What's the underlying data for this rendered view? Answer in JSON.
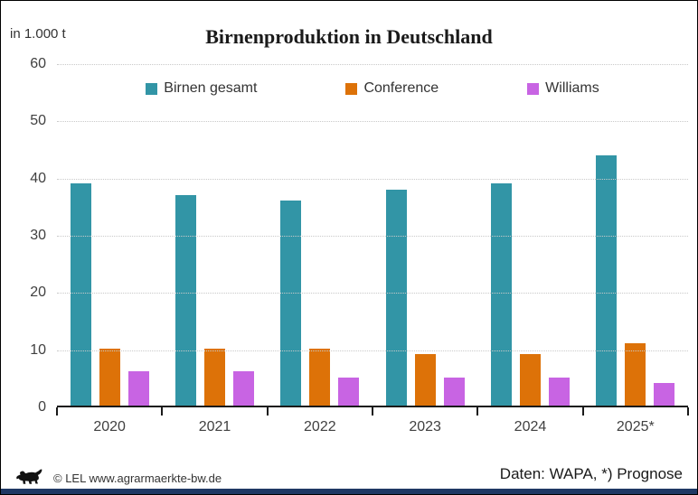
{
  "chart_data": {
    "type": "bar",
    "title": "Birnenproduktion in Deutschland",
    "unit_label": "in 1.000 t",
    "categories": [
      "2020",
      "2021",
      "2022",
      "2023",
      "2024",
      "2025*"
    ],
    "series": [
      {
        "name": "Birnen gesamt",
        "color": "#3295A6",
        "values": [
          39,
          37,
          36,
          38,
          39,
          44
        ]
      },
      {
        "name": "Conference",
        "color": "#DD7208",
        "values": [
          10,
          10,
          10,
          9,
          9,
          11
        ]
      },
      {
        "name": "Williams",
        "color": "#C864E3",
        "values": [
          6,
          6,
          5,
          5,
          5,
          4
        ]
      }
    ],
    "ylim": [
      0,
      60
    ],
    "yticks": [
      0,
      10,
      20,
      30,
      40,
      50,
      60
    ],
    "grid": true,
    "legend_position": "top",
    "xlabel": "",
    "ylabel": "in 1.000 t"
  },
  "footer": {
    "copyright": "© LEL www.agrarmaerkte-bw.de",
    "source": "Daten: WAPA, *) Prognose",
    "logo": "baden-wuerttemberg-lion",
    "bottom_bar_color": "#1F3864"
  }
}
